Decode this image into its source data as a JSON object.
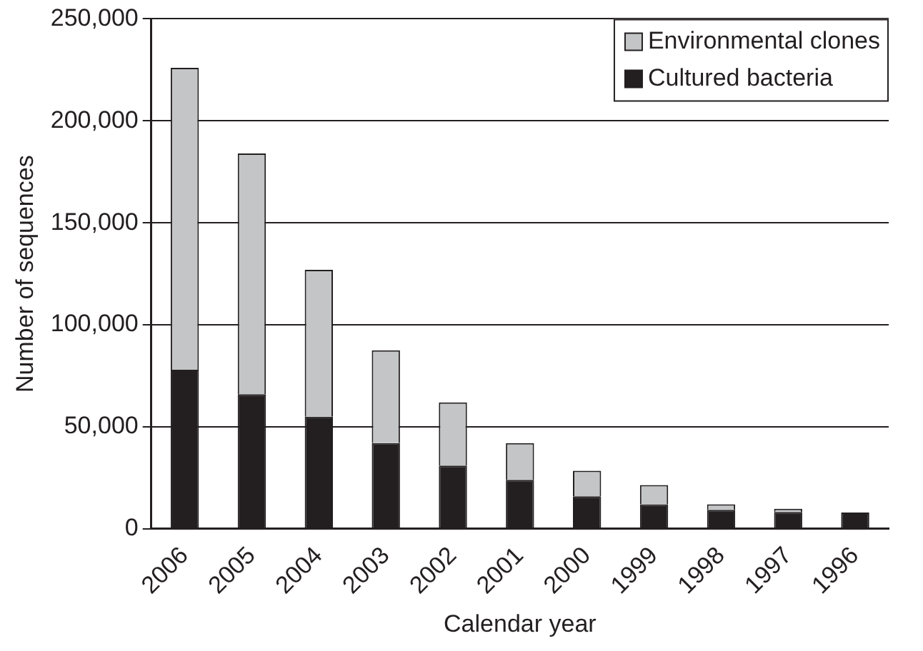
{
  "chart_data": {
    "type": "bar",
    "stacked": true,
    "xlabel": "Calendar year",
    "ylabel": "Number of sequences",
    "categories": [
      "2006",
      "2005",
      "2004",
      "2003",
      "2002",
      "2001",
      "2000",
      "1999",
      "1998",
      "1997",
      "1996"
    ],
    "series": [
      {
        "name": "Cultured bacteria",
        "color": "#231f20",
        "values": [
          78000,
          66000,
          55000,
          42000,
          31000,
          24000,
          16000,
          12000,
          9300,
          8300,
          8000
        ]
      },
      {
        "name": "Environmental clones",
        "color": "#c4c5c7",
        "values": [
          148000,
          118000,
          72000,
          45500,
          31000,
          18000,
          12500,
          9500,
          2700,
          1500,
          0
        ]
      }
    ],
    "ylim": [
      0,
      250000
    ],
    "yticks": [
      {
        "value": 0,
        "label": "0"
      },
      {
        "value": 50000,
        "label": "50,000"
      },
      {
        "value": 100000,
        "label": "100,000"
      },
      {
        "value": 150000,
        "label": "150,000"
      },
      {
        "value": 200000,
        "label": "200,000"
      },
      {
        "value": 250000,
        "label": "250,000"
      }
    ],
    "grid": "y",
    "legend": "top right"
  }
}
